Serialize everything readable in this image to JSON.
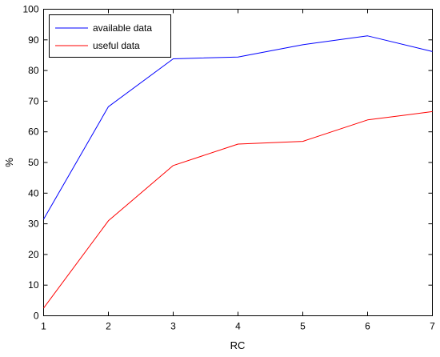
{
  "chart_data": {
    "type": "line",
    "title": "",
    "xlabel": "RC",
    "ylabel": "%",
    "x": [
      1,
      2,
      3,
      4,
      5,
      6,
      7
    ],
    "xlim": [
      1,
      7
    ],
    "ylim": [
      0,
      100
    ],
    "xticks": [
      1,
      2,
      3,
      4,
      5,
      6,
      7
    ],
    "yticks": [
      0,
      10,
      20,
      30,
      40,
      50,
      60,
      70,
      80,
      90,
      100
    ],
    "grid": false,
    "legend": "top-left",
    "series": [
      {
        "name": "available data",
        "color": "#0000ff",
        "values": [
          31.5,
          68.2,
          83.8,
          84.4,
          88.4,
          91.3,
          86.2
        ]
      },
      {
        "name": "useful data",
        "color": "#ff0000",
        "values": [
          2.5,
          31.0,
          49.0,
          56.0,
          56.9,
          63.9,
          66.6
        ]
      }
    ]
  }
}
